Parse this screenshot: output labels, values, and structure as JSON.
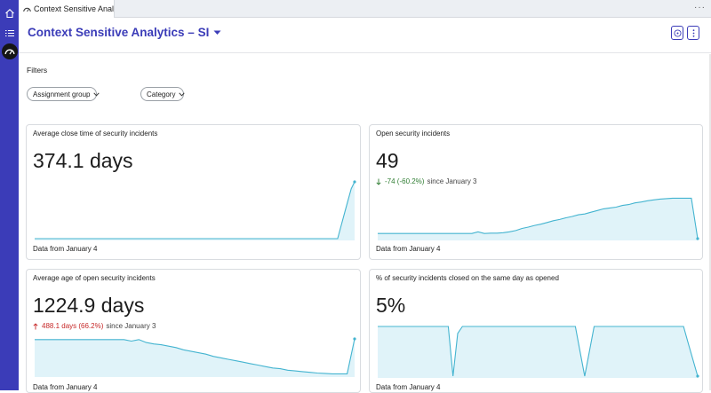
{
  "colors": {
    "brand": "#3b3cb8",
    "spark_line": "#44b4d0",
    "spark_fill": "#d8f0f7",
    "delta_positive": "#2f7d32",
    "delta_negative": "#c62828"
  },
  "sidebar": {
    "items": [
      {
        "icon": "home-icon"
      },
      {
        "icon": "list-icon"
      },
      {
        "icon": "gauge-icon"
      }
    ]
  },
  "tabs": [
    {
      "label": "Context Sensitive Analyt...",
      "icon": "gauge-icon"
    }
  ],
  "tabbar": {
    "more_label": "···"
  },
  "header": {
    "title": "Context Sensitive Analytics – SI"
  },
  "filters": {
    "label": "Filters",
    "items": [
      {
        "label": "Assignment group"
      },
      {
        "label": "Category"
      }
    ]
  },
  "cards": [
    {
      "title": "Average close time of security incidents",
      "value": "374.1 days",
      "footer": "Data from January 4",
      "trend": [
        0.0,
        0.0,
        0.0,
        0.0,
        0.0,
        0.0,
        0.0,
        0.0,
        0.0,
        0.0,
        0.0,
        0.0,
        0.0,
        0.0,
        0.0,
        0.0,
        0.0,
        0.0,
        0.0,
        0.0,
        0.0,
        0.0,
        0.0,
        0.0,
        0.0,
        0.0,
        0.0,
        0.0,
        0.0,
        0.0,
        0.0,
        0.0,
        0.0,
        0.0,
        0.0,
        0.0,
        0.0,
        0.0,
        0.0,
        0.0,
        0.0,
        0.0,
        0.0,
        0.0,
        0.0,
        0.0,
        0.0,
        0.0,
        0.0,
        0.0,
        0.0,
        0.0,
        0.0,
        0.0,
        0.0,
        0.0,
        0.0,
        0.0,
        0.0,
        0.0,
        0.0,
        0.0,
        0.0,
        0.0,
        0.0,
        0.0,
        0.0,
        0.0,
        0.0,
        0.0,
        0.0,
        0.0,
        0.0,
        0.0,
        0.0,
        0.0,
        0.0,
        0.0,
        0.0,
        0.0,
        0.0,
        0.0,
        0.0,
        0.0,
        0.0,
        0.0,
        0.0,
        0.0,
        0.0,
        0.0,
        0.22,
        0.44,
        0.66,
        0.88,
        1.0
      ]
    },
    {
      "title": "Open security incidents",
      "value": "49",
      "delta_main": "-74 (-60.2%)",
      "delta_rest": "since January 3",
      "delta_direction": "down",
      "footer": "Data from January 4",
      "trend": [
        0.12,
        0.12,
        0.12,
        0.12,
        0.12,
        0.12,
        0.12,
        0.12,
        0.12,
        0.12,
        0.12,
        0.12,
        0.12,
        0.12,
        0.12,
        0.12,
        0.16,
        0.12,
        0.13,
        0.13,
        0.14,
        0.16,
        0.19,
        0.24,
        0.27,
        0.31,
        0.34,
        0.38,
        0.42,
        0.45,
        0.49,
        0.52,
        0.56,
        0.58,
        0.62,
        0.66,
        0.7,
        0.72,
        0.74,
        0.78,
        0.8,
        0.84,
        0.86,
        0.89,
        0.91,
        0.93,
        0.94,
        0.95,
        0.95,
        0.95,
        0.95,
        0.0
      ]
    },
    {
      "title": "Average age of open security incidents",
      "value": "1224.9 days",
      "delta_main": "488.1 days (66.2%)",
      "delta_rest": "since January 3",
      "delta_direction": "up",
      "footer": "Data from January 4",
      "trend": [
        0.98,
        0.98,
        0.98,
        0.98,
        0.98,
        0.98,
        0.98,
        0.98,
        0.98,
        0.98,
        0.98,
        0.98,
        0.98,
        0.94,
        0.98,
        0.9,
        0.86,
        0.84,
        0.8,
        0.76,
        0.7,
        0.66,
        0.62,
        0.58,
        0.52,
        0.48,
        0.44,
        0.4,
        0.36,
        0.32,
        0.28,
        0.24,
        0.2,
        0.18,
        0.14,
        0.12,
        0.1,
        0.08,
        0.06,
        0.05,
        0.04,
        0.04,
        0.04,
        1.0
      ]
    },
    {
      "title": "% of security incidents closed on the same day as opened",
      "value": "5%",
      "footer": "Data from January 4",
      "trend": [
        1.0,
        1.0,
        1.0,
        1.0,
        1.0,
        1.0,
        1.0,
        1.0,
        1.0,
        1.0,
        1.0,
        1.0,
        1.0,
        1.0,
        1.0,
        1.0,
        0.0,
        0.86,
        1.0,
        1.0,
        1.0,
        1.0,
        1.0,
        1.0,
        1.0,
        1.0,
        1.0,
        1.0,
        1.0,
        1.0,
        1.0,
        1.0,
        1.0,
        1.0,
        1.0,
        1.0,
        1.0,
        1.0,
        1.0,
        1.0,
        1.0,
        1.0,
        1.0,
        0.5,
        0.0,
        0.5,
        1.0,
        1.0,
        1.0,
        1.0,
        1.0,
        1.0,
        1.0,
        1.0,
        1.0,
        1.0,
        1.0,
        1.0,
        1.0,
        1.0,
        1.0,
        1.0,
        1.0,
        1.0,
        1.0,
        1.0,
        0.66,
        0.33,
        0.0
      ]
    }
  ]
}
